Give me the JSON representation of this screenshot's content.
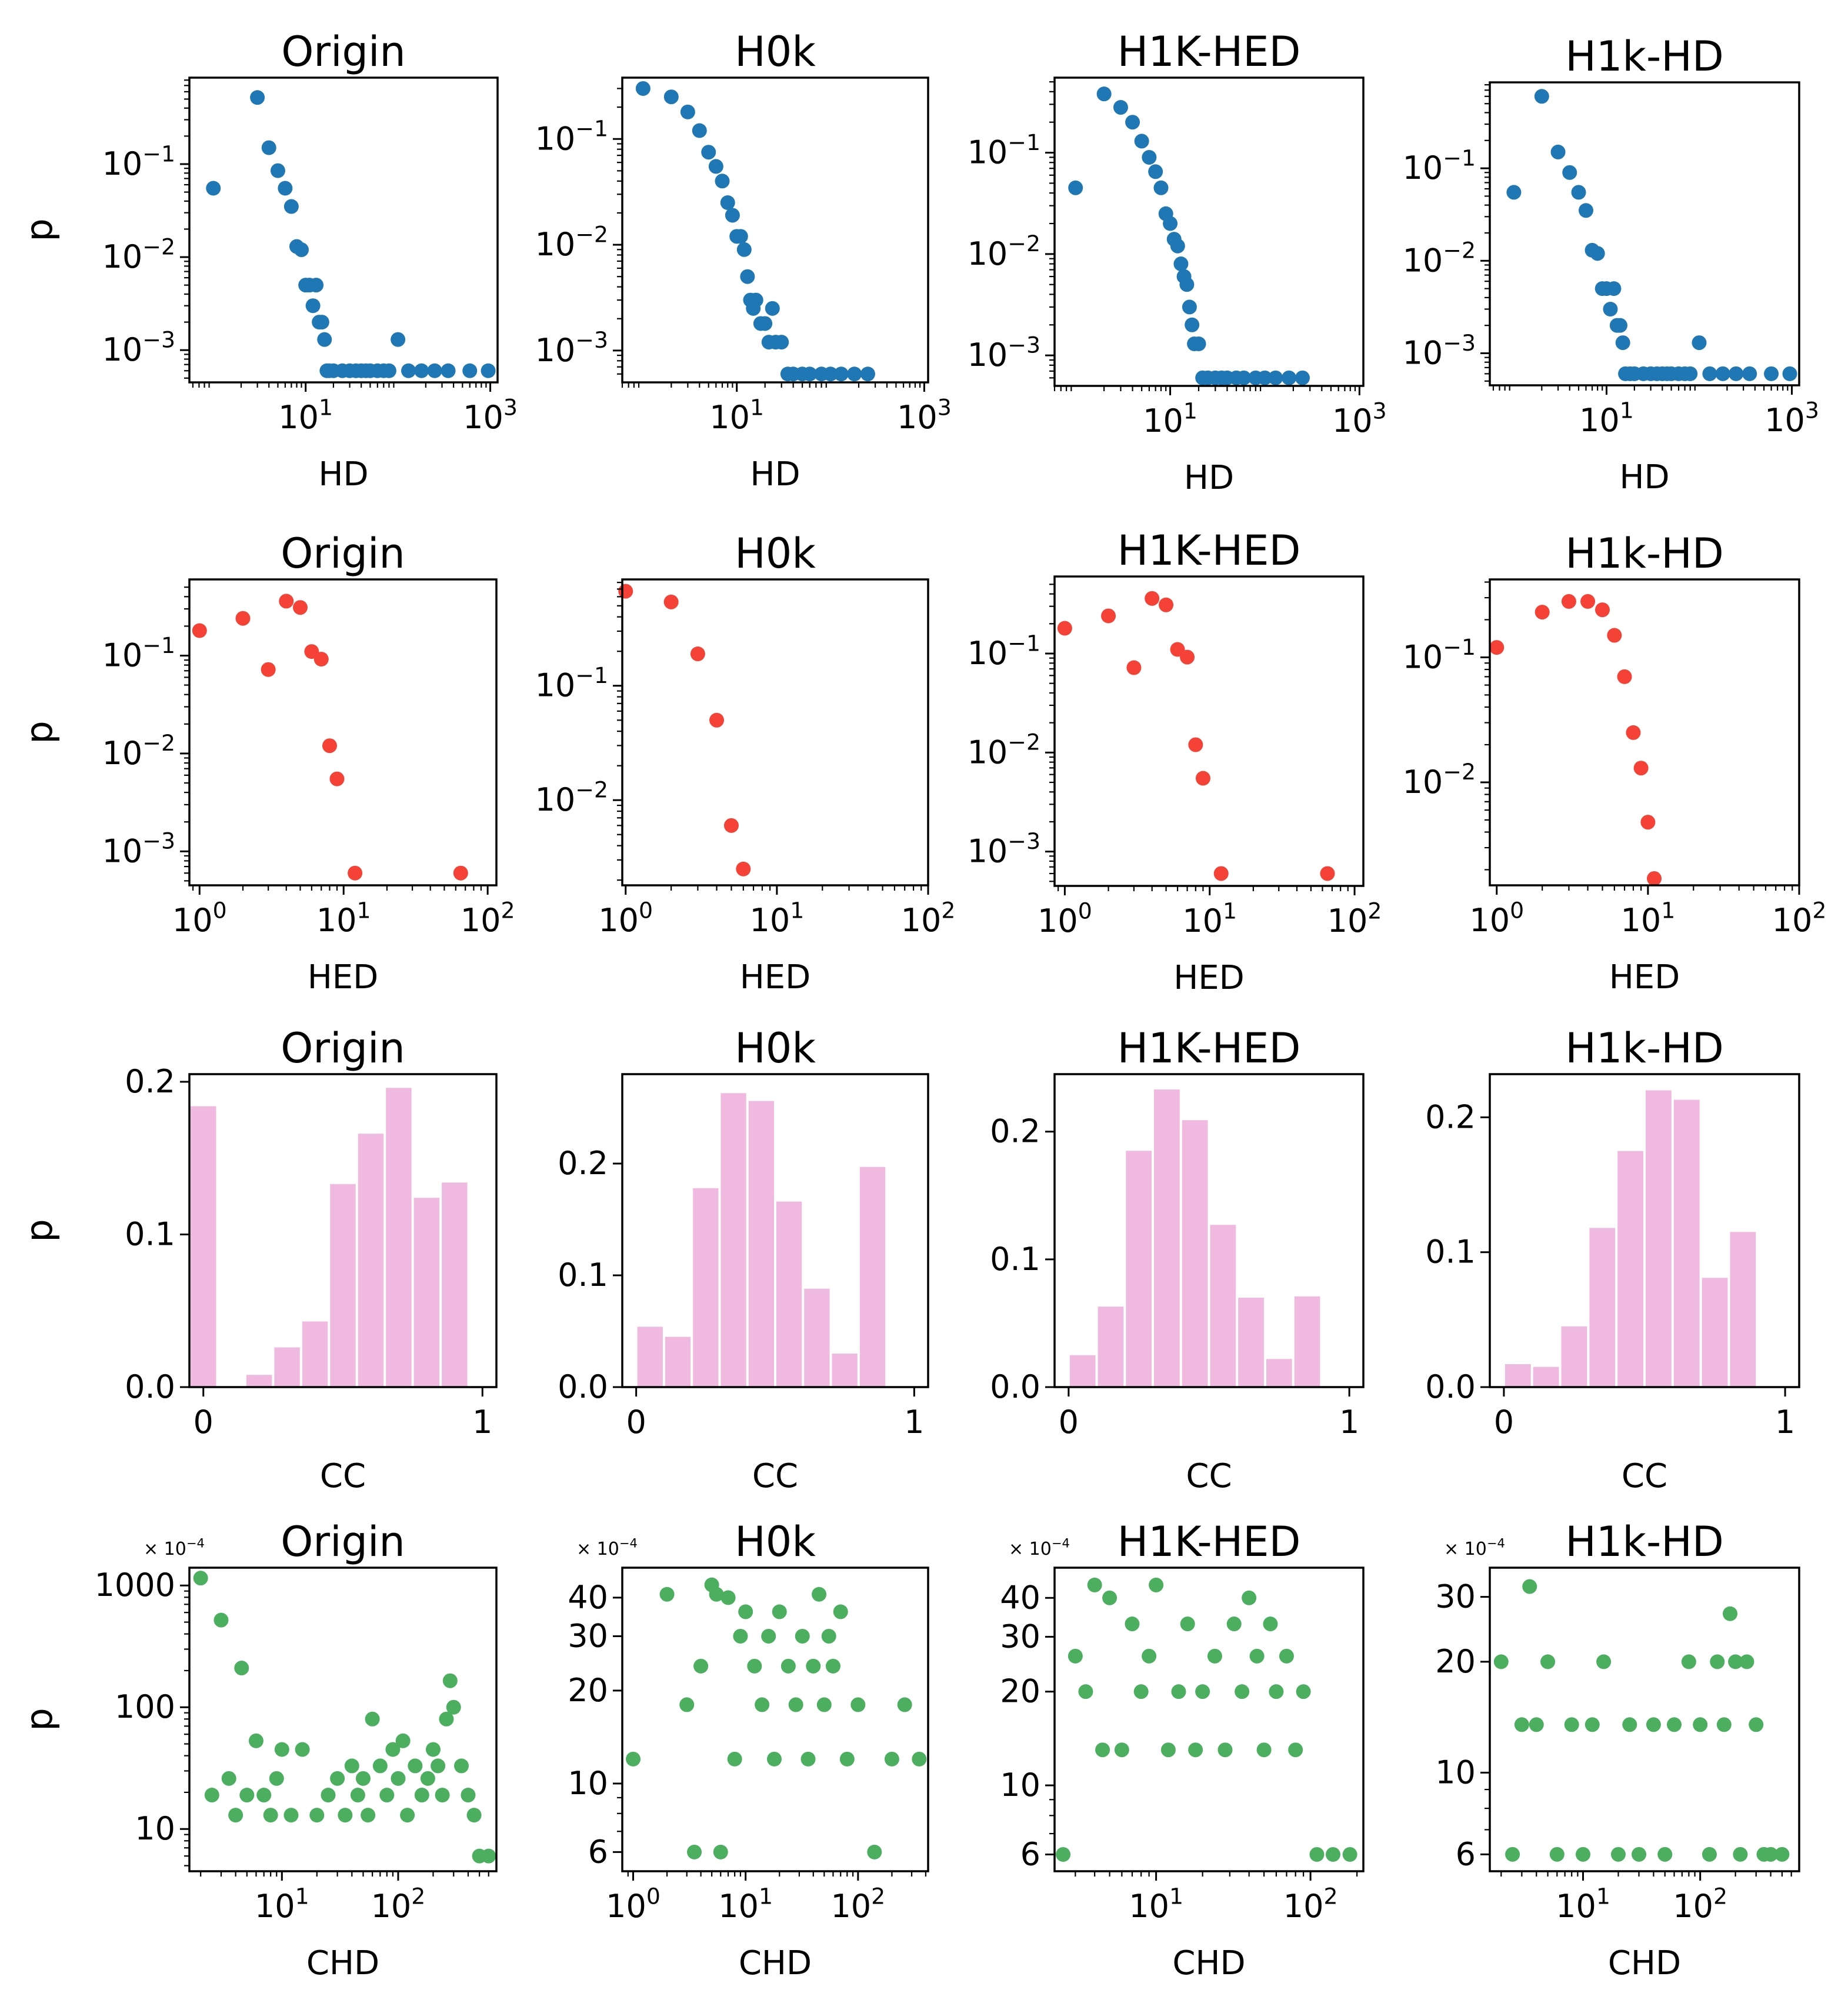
{
  "colors": {
    "hd": "#1f77b4",
    "hed": "#f44336",
    "cc": "#f0bae0",
    "chd": "#4caf60"
  },
  "row_ylabel": "p",
  "chart_data": [
    {
      "id": "hd-origin",
      "type": "scatter",
      "title": "Origin",
      "xlabel": "HD",
      "xscale": "log",
      "yscale": "log",
      "xlim": [
        0.55,
        1200
      ],
      "ylim": [
        0.00045,
        0.85
      ],
      "xticks": [
        10,
        1000
      ],
      "xtick_labels": [
        "10^1",
        "10^3"
      ],
      "yticks": [
        0.001,
        0.01,
        0.1
      ],
      "ytick_labels": [
        "10^-3",
        "10^-2",
        "10^-1"
      ],
      "x": [
        1,
        3,
        4,
        5,
        6,
        7,
        8,
        9,
        10,
        11,
        12,
        13,
        14,
        15,
        16,
        17,
        18,
        20,
        25,
        30,
        35,
        40,
        45,
        50,
        60,
        70,
        80,
        100,
        130,
        180,
        250,
        350,
        600,
        950
      ],
      "y": [
        0.055,
        0.52,
        0.15,
        0.085,
        0.055,
        0.035,
        0.013,
        0.012,
        0.005,
        0.005,
        0.003,
        0.005,
        0.002,
        0.002,
        0.0013,
        0.0006,
        0.0006,
        0.0006,
        0.0006,
        0.0006,
        0.0006,
        0.0006,
        0.0006,
        0.0006,
        0.0006,
        0.0006,
        0.0006,
        0.0013,
        0.0006,
        0.0006,
        0.0006,
        0.0006,
        0.0006,
        0.0006
      ]
    },
    {
      "id": "hd-h0k",
      "type": "scatter",
      "title": "H0k",
      "xlabel": "HD",
      "xscale": "log",
      "yscale": "log",
      "xlim": [
        0.6,
        1100
      ],
      "ylim": [
        0.0005,
        0.38
      ],
      "xticks": [
        10,
        1000
      ],
      "xtick_labels": [
        "10^1",
        "10^3"
      ],
      "yticks": [
        0.001,
        0.01,
        0.1
      ],
      "ytick_labels": [
        "10^-3",
        "10^-2",
        "10^-1"
      ],
      "x": [
        1,
        2,
        3,
        4,
        5,
        6,
        7,
        8,
        9,
        10,
        11,
        12,
        13,
        14,
        15,
        16,
        18,
        20,
        22,
        24,
        26,
        30,
        35,
        40,
        50,
        60,
        80,
        100,
        130,
        180,
        250
      ],
      "y": [
        0.3,
        0.25,
        0.18,
        0.12,
        0.075,
        0.055,
        0.04,
        0.025,
        0.019,
        0.012,
        0.012,
        0.009,
        0.005,
        0.003,
        0.0025,
        0.003,
        0.0018,
        0.0018,
        0.0012,
        0.0025,
        0.0012,
        0.0012,
        0.0006,
        0.0006,
        0.0006,
        0.0006,
        0.0006,
        0.0006,
        0.0006,
        0.0006,
        0.0006
      ]
    },
    {
      "id": "hd-h1k-hed",
      "type": "scatter",
      "title": "H1K-HED",
      "xlabel": "HD",
      "xscale": "log",
      "yscale": "log",
      "xlim": [
        0.6,
        1100
      ],
      "ylim": [
        0.0005,
        0.55
      ],
      "xticks": [
        10,
        1000
      ],
      "xtick_labels": [
        "10^1",
        "10^3"
      ],
      "yticks": [
        0.001,
        0.01,
        0.1
      ],
      "ytick_labels": [
        "10^-3",
        "10^-2",
        "10^-1"
      ],
      "x": [
        1,
        2,
        3,
        4,
        5,
        6,
        7,
        8,
        9,
        10,
        11,
        12,
        13,
        14,
        15,
        16,
        17,
        18,
        20,
        22,
        25,
        30,
        35,
        40,
        50,
        60,
        80,
        100,
        130,
        180,
        250
      ],
      "y": [
        0.045,
        0.38,
        0.28,
        0.2,
        0.13,
        0.09,
        0.065,
        0.045,
        0.025,
        0.02,
        0.014,
        0.012,
        0.008,
        0.006,
        0.005,
        0.003,
        0.002,
        0.0013,
        0.0013,
        0.0006,
        0.0006,
        0.0006,
        0.0006,
        0.0006,
        0.0006,
        0.0006,
        0.0006,
        0.0006,
        0.0006,
        0.0006,
        0.0006
      ]
    },
    {
      "id": "hd-h1k-hd",
      "type": "scatter",
      "title": "H1k-HD",
      "xlabel": "HD",
      "xscale": "log",
      "yscale": "log",
      "xlim": [
        0.55,
        1200
      ],
      "ylim": [
        0.00045,
        0.85
      ],
      "xticks": [
        10,
        1000
      ],
      "xtick_labels": [
        "10^1",
        "10^3"
      ],
      "yticks": [
        0.001,
        0.01,
        0.1
      ],
      "ytick_labels": [
        "10^-3",
        "10^-2",
        "10^-1"
      ],
      "x": [
        1,
        2,
        3,
        4,
        5,
        6,
        7,
        8,
        9,
        10,
        11,
        12,
        13,
        14,
        15,
        16,
        18,
        20,
        25,
        30,
        35,
        40,
        45,
        50,
        60,
        70,
        80,
        100,
        130,
        180,
        250,
        350,
        600,
        950
      ],
      "y": [
        0.055,
        0.6,
        0.15,
        0.09,
        0.055,
        0.035,
        0.013,
        0.012,
        0.005,
        0.005,
        0.003,
        0.005,
        0.002,
        0.002,
        0.0013,
        0.0006,
        0.0006,
        0.0006,
        0.0006,
        0.0006,
        0.0006,
        0.0006,
        0.0006,
        0.0006,
        0.0006,
        0.0006,
        0.0006,
        0.0013,
        0.0006,
        0.0006,
        0.0006,
        0.0006,
        0.0006,
        0.0006
      ]
    },
    {
      "id": "hed-origin",
      "type": "scatter",
      "title": "Origin",
      "xlabel": "HED",
      "xscale": "log",
      "yscale": "log",
      "xlim": [
        0.85,
        115
      ],
      "ylim": [
        0.00045,
        0.6
      ],
      "xticks": [
        1,
        10,
        100
      ],
      "xtick_labels": [
        "10^0",
        "10^1",
        "10^2"
      ],
      "yticks": [
        0.001,
        0.01,
        0.1
      ],
      "ytick_labels": [
        "10^-3",
        "10^-2",
        "10^-1"
      ],
      "x": [
        1,
        2,
        3,
        4,
        5,
        6,
        7,
        8,
        9,
        12,
        65
      ],
      "y": [
        0.18,
        0.24,
        0.072,
        0.36,
        0.31,
        0.11,
        0.092,
        0.012,
        0.0055,
        0.0006,
        0.0006
      ]
    },
    {
      "id": "hed-h0k",
      "type": "scatter",
      "title": "H0k",
      "xlabel": "HED",
      "xscale": "log",
      "yscale": "log",
      "xlim": [
        0.95,
        100
      ],
      "ylim": [
        0.0018,
        0.85
      ],
      "xticks": [
        1,
        10,
        100
      ],
      "xtick_labels": [
        "10^0",
        "10^1",
        "10^2"
      ],
      "yticks": [
        0.01,
        0.1
      ],
      "ytick_labels": [
        "10^-2",
        "10^-1"
      ],
      "x": [
        1,
        2,
        3,
        4,
        5,
        6
      ],
      "y": [
        0.67,
        0.54,
        0.19,
        0.05,
        0.006,
        0.0025
      ]
    },
    {
      "id": "hed-h1k-hed",
      "type": "scatter",
      "title": "H1K-HED",
      "xlabel": "HED",
      "xscale": "log",
      "yscale": "log",
      "xlim": [
        0.85,
        115
      ],
      "ylim": [
        0.00045,
        0.6
      ],
      "xticks": [
        1,
        10,
        100
      ],
      "xtick_labels": [
        "10^0",
        "10^1",
        "10^2"
      ],
      "yticks": [
        0.001,
        0.01,
        0.1
      ],
      "ytick_labels": [
        "10^-3",
        "10^-2",
        "10^-1"
      ],
      "x": [
        1,
        2,
        3,
        4,
        5,
        6,
        7,
        8,
        9,
        12,
        65
      ],
      "y": [
        0.18,
        0.24,
        0.072,
        0.36,
        0.31,
        0.11,
        0.092,
        0.012,
        0.0055,
        0.0006,
        0.0006
      ]
    },
    {
      "id": "hed-h1k-hd",
      "type": "scatter",
      "title": "H1k-HD",
      "xlabel": "HED",
      "xscale": "log",
      "yscale": "log",
      "xlim": [
        0.9,
        100
      ],
      "ylim": [
        0.0015,
        0.42
      ],
      "xticks": [
        1,
        10,
        100
      ],
      "xtick_labels": [
        "10^0",
        "10^1",
        "10^2"
      ],
      "yticks": [
        0.01,
        0.1
      ],
      "ytick_labels": [
        "10^-2",
        "10^-1"
      ],
      "x": [
        1,
        2,
        3,
        4,
        5,
        6,
        7,
        8,
        9,
        10,
        11
      ],
      "y": [
        0.12,
        0.23,
        0.28,
        0.28,
        0.24,
        0.15,
        0.07,
        0.025,
        0.013,
        0.0048,
        0.0017
      ]
    },
    {
      "id": "cc-origin",
      "type": "bar",
      "title": "Origin",
      "xlabel": "CC",
      "xlim": [
        -0.05,
        1.05
      ],
      "ylim": [
        0,
        0.205
      ],
      "xticks": [
        0,
        1
      ],
      "xtick_labels": [
        "0",
        "1"
      ],
      "yticks": [
        0,
        0.1,
        0.2
      ],
      "ytick_labels": [
        "0.0",
        "0.1",
        "0.2"
      ],
      "bin_width": 0.1,
      "bin_starts": [
        -0.05,
        0.05,
        0.15,
        0.25,
        0.35,
        0.45,
        0.55,
        0.65,
        0.75,
        0.85,
        0.95
      ],
      "values": [
        0.184,
        0,
        0.008,
        0.026,
        0.043,
        0.133,
        0.166,
        0.196,
        0.124,
        0.134
      ]
    },
    {
      "id": "cc-h0k",
      "type": "bar",
      "title": "H0k",
      "xlabel": "CC",
      "xlim": [
        -0.05,
        1.05
      ],
      "ylim": [
        0,
        0.28
      ],
      "xticks": [
        0,
        1
      ],
      "xtick_labels": [
        "0",
        "1"
      ],
      "yticks": [
        0,
        0.1,
        0.2
      ],
      "ytick_labels": [
        "0.0",
        "0.1",
        "0.2"
      ],
      "bin_width": 0.1,
      "bin_starts": [
        0,
        0.1,
        0.2,
        0.3,
        0.4,
        0.5,
        0.6,
        0.7,
        0.8,
        0.9
      ],
      "values": [
        0.054,
        0.045,
        0.178,
        0.263,
        0.256,
        0.166,
        0.088,
        0.03,
        0.197
      ]
    },
    {
      "id": "cc-h1k-hed",
      "type": "bar",
      "title": "H1K-HED",
      "xlabel": "CC",
      "xlim": [
        -0.05,
        1.05
      ],
      "ylim": [
        0,
        0.245
      ],
      "xticks": [
        0,
        1
      ],
      "xtick_labels": [
        "0",
        "1"
      ],
      "yticks": [
        0,
        0.1,
        0.2
      ],
      "ytick_labels": [
        "0.0",
        "0.1",
        "0.2"
      ],
      "bin_width": 0.1,
      "bin_starts": [
        0,
        0.1,
        0.2,
        0.3,
        0.4,
        0.5,
        0.6,
        0.7,
        0.8,
        0.9
      ],
      "values": [
        0.025,
        0.063,
        0.185,
        0.233,
        0.209,
        0.127,
        0.07,
        0.022,
        0.071
      ]
    },
    {
      "id": "cc-h1k-hd",
      "type": "bar",
      "title": "H1k-HD",
      "xlabel": "CC",
      "xlim": [
        -0.05,
        1.05
      ],
      "ylim": [
        0,
        0.232
      ],
      "xticks": [
        0,
        1
      ],
      "xtick_labels": [
        "0",
        "1"
      ],
      "yticks": [
        0,
        0.1,
        0.2
      ],
      "ytick_labels": [
        "0.0",
        "0.1",
        "0.2"
      ],
      "bin_width": 0.1,
      "bin_starts": [
        0,
        0.1,
        0.2,
        0.3,
        0.4,
        0.5,
        0.6,
        0.7,
        0.8,
        0.9
      ],
      "values": [
        0.017,
        0.015,
        0.045,
        0.118,
        0.175,
        0.22,
        0.213,
        0.081,
        0.115
      ]
    },
    {
      "id": "chd-origin",
      "type": "scatter",
      "title": "Origin",
      "xlabel": "CHD",
      "xscale": "log",
      "yscale": "log",
      "multiplier": "× 10^-4",
      "xlim": [
        1.6,
        700
      ],
      "ylim": [
        4.5,
        1400
      ],
      "xticks": [
        10,
        100
      ],
      "xtick_labels": [
        "10^1",
        "10^2"
      ],
      "yticks": [
        10,
        100,
        1000
      ],
      "ytick_labels": [
        "10",
        "100",
        "1000"
      ],
      "x": [
        2,
        2.5,
        3,
        3.5,
        4,
        4.5,
        5,
        6,
        7,
        8,
        9,
        10,
        12,
        15,
        20,
        25,
        30,
        35,
        40,
        45,
        50,
        55,
        60,
        70,
        80,
        90,
        100,
        110,
        120,
        140,
        160,
        180,
        200,
        220,
        240,
        260,
        280,
        300,
        350,
        400,
        450,
        500,
        600
      ],
      "y": [
        1150,
        19,
        520,
        26,
        13,
        210,
        19,
        53,
        19,
        13,
        26,
        45,
        13,
        45,
        13,
        19,
        26,
        13,
        33,
        19,
        26,
        13,
        80,
        33,
        19,
        45,
        26,
        53,
        13,
        33,
        19,
        26,
        45,
        33,
        19,
        80,
        165,
        100,
        33,
        19,
        13,
        6,
        6
      ]
    },
    {
      "id": "chd-h0k",
      "type": "scatter",
      "title": "H0k",
      "xlabel": "CHD",
      "xscale": "log",
      "yscale": "log",
      "multiplier": "× 10^-4",
      "xlim": [
        0.8,
        420
      ],
      "ylim": [
        5.2,
        50
      ],
      "xticks": [
        1,
        10,
        100
      ],
      "xtick_labels": [
        "10^0",
        "10^1",
        "10^2"
      ],
      "yticks": [
        6,
        10,
        20,
        30,
        40
      ],
      "ytick_labels": [
        "6",
        "10",
        "20",
        "30",
        "40"
      ],
      "x": [
        1,
        2,
        3,
        3.5,
        4,
        5,
        5.5,
        6,
        7,
        8,
        9,
        10,
        12,
        14,
        16,
        18,
        20,
        24,
        28,
        32,
        36,
        40,
        45,
        50,
        55,
        60,
        70,
        80,
        100,
        140,
        200,
        260,
        350
      ],
      "y": [
        12,
        41,
        18,
        6,
        24,
        44,
        41,
        6,
        40,
        12,
        30,
        36,
        24,
        18,
        30,
        12,
        36,
        24,
        18,
        30,
        12,
        24,
        41,
        18,
        30,
        24,
        36,
        12,
        18,
        6,
        12,
        18,
        12
      ]
    },
    {
      "id": "chd-h1k-hed",
      "type": "scatter",
      "title": "H1K-HED",
      "xlabel": "CHD",
      "xscale": "log",
      "yscale": "log",
      "multiplier": "× 10^-4",
      "xlim": [
        2.2,
        220
      ],
      "ylim": [
        5.3,
        50
      ],
      "xticks": [
        10,
        100
      ],
      "xtick_labels": [
        "10^1",
        "10^2"
      ],
      "yticks": [
        6,
        10,
        20,
        30,
        40
      ],
      "ytick_labels": [
        "6",
        "10",
        "20",
        "30",
        "40"
      ],
      "x": [
        2.5,
        3,
        3.5,
        4,
        4.5,
        5,
        6,
        7,
        8,
        9,
        10,
        12,
        14,
        16,
        18,
        20,
        24,
        28,
        32,
        36,
        40,
        45,
        50,
        55,
        60,
        70,
        80,
        90,
        110,
        140,
        180
      ],
      "y": [
        6,
        26,
        20,
        44,
        13,
        40,
        13,
        33,
        20,
        26,
        44,
        13,
        20,
        33,
        13,
        20,
        26,
        13,
        33,
        20,
        40,
        26,
        13,
        33,
        20,
        26,
        13,
        20,
        6,
        6,
        6
      ]
    },
    {
      "id": "chd-h1k-hd",
      "type": "scatter",
      "title": "H1k-HD",
      "xlabel": "CHD",
      "xscale": "log",
      "yscale": "log",
      "multiplier": "× 10^-4",
      "xlim": [
        1.6,
        700
      ],
      "ylim": [
        5.4,
        36
      ],
      "xticks": [
        10,
        100
      ],
      "xtick_labels": [
        "10^1",
        "10^2"
      ],
      "yticks": [
        6,
        10,
        20,
        30
      ],
      "ytick_labels": [
        "6",
        "10",
        "20",
        "30"
      ],
      "x": [
        2,
        2.5,
        3,
        3.5,
        4,
        5,
        6,
        8,
        10,
        12,
        15,
        20,
        25,
        30,
        40,
        50,
        60,
        80,
        100,
        120,
        140,
        160,
        180,
        200,
        220,
        250,
        300,
        350,
        400,
        500
      ],
      "y": [
        20,
        6,
        13.5,
        32,
        13.5,
        20,
        6,
        13.5,
        6,
        13.5,
        20,
        6,
        13.5,
        6,
        13.5,
        6,
        13.5,
        20,
        13.5,
        6,
        20,
        13.5,
        27,
        20,
        6,
        20,
        13.5,
        6,
        6,
        6
      ]
    }
  ]
}
